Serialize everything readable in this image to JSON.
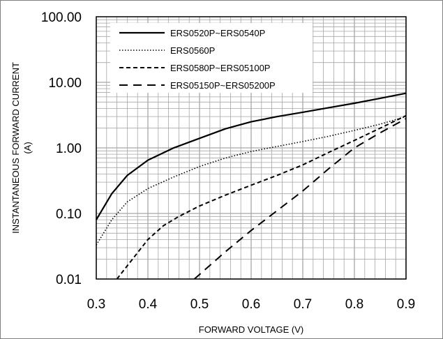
{
  "chart_data": {
    "type": "line",
    "title": "",
    "xlabel": "FORWARD VOLTAGE (V)",
    "ylabel_line1": "INSTANTANEOUS FORWARD CURRENT",
    "ylabel_line2": "(A)",
    "xlim": [
      0.3,
      0.9
    ],
    "ylim": [
      0.01,
      100
    ],
    "yscale": "log",
    "grid": true,
    "legend_position": "top-left",
    "x_ticks": [
      0.3,
      0.4,
      0.5,
      0.6,
      0.7,
      0.8,
      0.9
    ],
    "x_tick_labels": [
      "0.3",
      "0.4",
      "0.5",
      "0.6",
      "0.7",
      "0.8",
      "0.9"
    ],
    "y_ticks": [
      0.01,
      0.1,
      1,
      10,
      100
    ],
    "y_tick_labels": [
      "0.01",
      "0.10",
      "1.00",
      "10.00",
      "100.00"
    ],
    "series": [
      {
        "name": "ERS0520P~ERS0540P",
        "style": "solid",
        "color": "#000000",
        "x": [
          0.3,
          0.33,
          0.36,
          0.4,
          0.45,
          0.5,
          0.55,
          0.6,
          0.65,
          0.7,
          0.75,
          0.8,
          0.85,
          0.9
        ],
        "y": [
          0.08,
          0.2,
          0.38,
          0.65,
          1.0,
          1.4,
          1.95,
          2.5,
          3.0,
          3.5,
          4.1,
          4.8,
          5.7,
          6.8
        ]
      },
      {
        "name": "ERS0560P",
        "style": "dotted",
        "color": "#000000",
        "x": [
          0.3,
          0.33,
          0.36,
          0.4,
          0.45,
          0.5,
          0.55,
          0.6,
          0.65,
          0.7,
          0.75,
          0.8,
          0.85,
          0.9
        ],
        "y": [
          0.033,
          0.08,
          0.15,
          0.24,
          0.36,
          0.52,
          0.7,
          0.88,
          1.05,
          1.25,
          1.5,
          1.85,
          2.3,
          3.0
        ]
      },
      {
        "name": "ERS0580P~ERS05100P",
        "style": "short-dash",
        "color": "#000000",
        "x": [
          0.34,
          0.37,
          0.4,
          0.43,
          0.46,
          0.5,
          0.55,
          0.6,
          0.65,
          0.7,
          0.75,
          0.8,
          0.85,
          0.9
        ],
        "y": [
          0.01,
          0.02,
          0.04,
          0.065,
          0.09,
          0.13,
          0.19,
          0.27,
          0.38,
          0.55,
          0.85,
          1.3,
          2.0,
          3.1
        ]
      },
      {
        "name": "ERS05150P~ERS05200P",
        "style": "long-dash",
        "color": "#000000",
        "x": [
          0.49,
          0.55,
          0.6,
          0.65,
          0.7,
          0.75,
          0.8,
          0.85,
          0.9
        ],
        "y": [
          0.01,
          0.026,
          0.055,
          0.11,
          0.22,
          0.48,
          1.0,
          1.7,
          2.8
        ]
      }
    ]
  }
}
